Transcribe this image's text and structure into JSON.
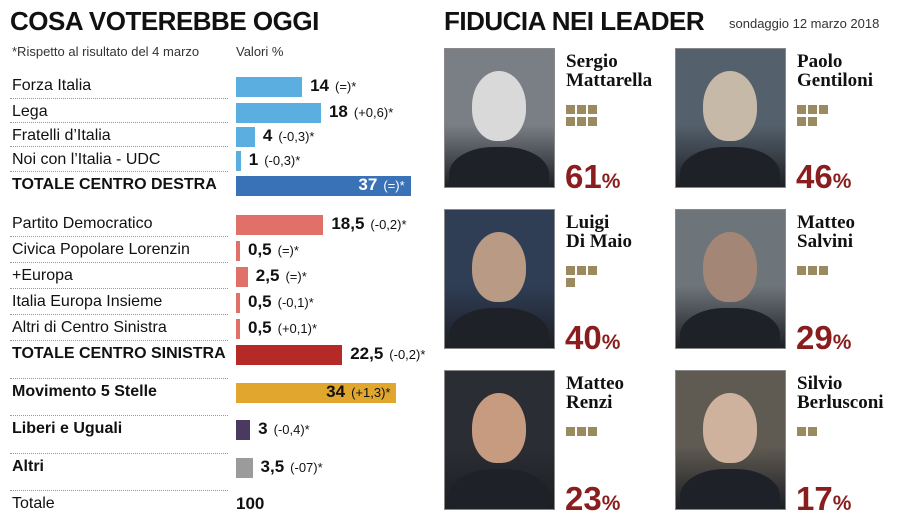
{
  "left": {
    "title": "COSA VOTEREBBE OGGI",
    "note": "*Rispetto al risultato del 4 marzo",
    "unit": "Valori %"
  },
  "right": {
    "title": "FIDUCIA NEI LEADER",
    "date": "sondaggio 12 marzo 2018"
  },
  "chart_data": [
    {
      "type": "bar",
      "orientation": "horizontal",
      "title": "COSA VOTEREBBE OGGI",
      "unit": "Valori %",
      "categories": [
        "Forza Italia",
        "Lega",
        "Fratelli d’Italia",
        "Noi con l’Italia - UDC",
        "TOTALE CENTRO DESTRA",
        "Partito Democratico",
        "Civica Popolare Lorenzin",
        "+Europa",
        "Italia Europa Insieme",
        "Altri di Centro Sinistra",
        "TOTALE CENTRO SINISTRA",
        "Movimento 5 Stelle",
        "Liberi e Uguali",
        "Altri",
        "Totale"
      ],
      "values": [
        14,
        18,
        4,
        1,
        37,
        18.5,
        0.5,
        2.5,
        0.5,
        0.5,
        22.5,
        34,
        3,
        3.5,
        100
      ],
      "value_labels": [
        "14",
        "18",
        "4",
        "1",
        "37",
        "18,5",
        "0,5",
        "2,5",
        "0,5",
        "0,5",
        "22,5",
        "34",
        "3",
        "3,5",
        "100"
      ],
      "changes": [
        "(=)*",
        "(+0,6)*",
        "(-0,3)*",
        "(-0,3)*",
        "(=)*",
        "(-0,2)*",
        "(=)*",
        "(=)*",
        "(-0,1)*",
        "(+0,1)*",
        "(-0,2)*",
        "(+1,3)*",
        "(-0,4)*",
        "(-07)*",
        ""
      ],
      "bold": [
        false,
        false,
        false,
        false,
        true,
        false,
        false,
        false,
        false,
        false,
        true,
        true,
        true,
        true,
        false
      ],
      "colors": [
        "#5aaee0",
        "#5aaee0",
        "#5aaee0",
        "#5aaee0",
        "#3a72b8",
        "#e07068",
        "#e07068",
        "#e07068",
        "#e07068",
        "#e07068",
        "#b52a26",
        "#e0a62e",
        "#4b3a60",
        "#9b9b9b",
        ""
      ]
    },
    {
      "type": "table",
      "title": "FIDUCIA NEI LEADER",
      "leaders": [
        {
          "name": "Sergio Mattarella",
          "line1": "Sergio",
          "line2": "Mattarella",
          "value": 61,
          "label": "61",
          "unit": "%",
          "squares": 6
        },
        {
          "name": "Paolo Gentiloni",
          "line1": "Paolo",
          "line2": "Gentiloni",
          "value": 46,
          "label": "46",
          "unit": "%",
          "squares": 5
        },
        {
          "name": "Luigi Di Maio",
          "line1": "Luigi",
          "line2": "Di Maio",
          "value": 40,
          "label": "40",
          "unit": "%",
          "squares": 4
        },
        {
          "name": "Matteo Salvini",
          "line1": "Matteo",
          "line2": "Salvini",
          "value": 29,
          "label": "29",
          "unit": "%",
          "squares": 3
        },
        {
          "name": "Matteo Renzi",
          "line1": "Matteo",
          "line2": "Renzi",
          "value": 23,
          "label": "23",
          "unit": "%",
          "squares": 3
        },
        {
          "name": "Silvio Berlusconi",
          "line1": "Silvio",
          "line2": "Berlusconi",
          "value": 17,
          "label": "17",
          "unit": "%",
          "squares": 2
        }
      ]
    }
  ]
}
